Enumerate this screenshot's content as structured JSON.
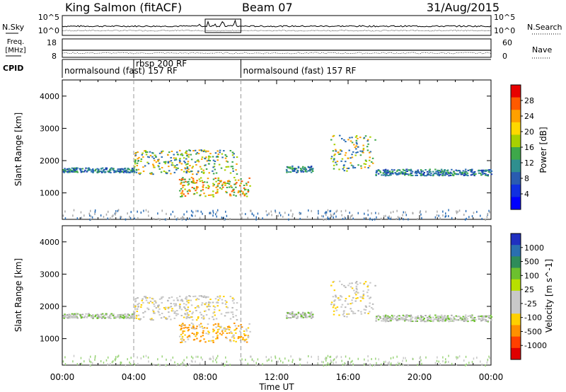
{
  "header": {
    "title": "King Salmon (fitACF)",
    "beam": "Beam 07",
    "date": "31/Aug/2015"
  },
  "chart_data": [
    {
      "type": "line",
      "panel": "noise",
      "left_label": "N.Sky",
      "left_ticks": [
        "10^5",
        "10^0"
      ],
      "right_label": "N.Search",
      "right_ticks": [
        "10^5",
        "10^0"
      ],
      "box_annotation_x": [
        8.0,
        10.0
      ]
    },
    {
      "type": "line",
      "panel": "frequency-nave",
      "left_label_lines": [
        "Freq.",
        "[MHz]"
      ],
      "left_ticks": [
        18,
        8
      ],
      "right_label": "Nave",
      "right_ticks": [
        60,
        0
      ]
    },
    {
      "type": "table",
      "panel": "cpid",
      "label": "CPID",
      "segments": [
        {
          "label": "normalsound (fast) 157 RF",
          "start": 0.0,
          "end": 10.0
        },
        {
          "label": "rbsp 200 RF",
          "start": 4.0,
          "end": 10.0
        },
        {
          "label": "normalsound (fast) 157 RF",
          "start": 10.0,
          "end": 24.0
        }
      ]
    },
    {
      "type": "heatmap",
      "panel": "power",
      "ylabel": "Slant Range [km]",
      "yticks": [
        1000,
        2000,
        3000,
        4000
      ],
      "ylim": [
        180,
        4500
      ],
      "xlim": [
        0,
        24
      ],
      "colorbar": {
        "label": "Power [dB]",
        "ticks": [
          "28",
          "24",
          "20",
          "16",
          "12",
          "8",
          "4"
        ],
        "colors": [
          "#e80000",
          "#ff5a00",
          "#ffa000",
          "#ffd800",
          "#a8d000",
          "#3ea84a",
          "#2f8f8f",
          "#2a5cb0",
          "#1030e0",
          "#0000ff"
        ]
      },
      "regions": [
        {
          "x": [
            0.0,
            4.0
          ],
          "y": [
            1650,
            1800
          ],
          "level": "low"
        },
        {
          "x": [
            4.0,
            9.8
          ],
          "y": [
            1600,
            2350
          ],
          "level": "mid"
        },
        {
          "x": [
            6.5,
            10.5
          ],
          "y": [
            900,
            1500
          ],
          "level": "high"
        },
        {
          "x": [
            12.5,
            14.0
          ],
          "y": [
            1650,
            1850
          ],
          "level": "low"
        },
        {
          "x": [
            15.0,
            17.5
          ],
          "y": [
            1700,
            2800
          ],
          "level": "mid"
        },
        {
          "x": [
            17.5,
            24.0
          ],
          "y": [
            1550,
            1750
          ],
          "level": "low"
        }
      ]
    },
    {
      "type": "heatmap",
      "panel": "velocity",
      "ylabel": "Slant Range [km]",
      "yticks": [
        1000,
        2000,
        3000,
        4000
      ],
      "ylim": [
        180,
        4500
      ],
      "xlim": [
        0,
        24
      ],
      "colorbar": {
        "label": "Velocity [m s^-1]",
        "ticks": [
          "1000",
          "500",
          "100",
          "25",
          "-25",
          "-100",
          "-500",
          "-1000"
        ],
        "colors": [
          "#2030c0",
          "#2a6fb0",
          "#2e8c5a",
          "#6cc02e",
          "#b8e000",
          "#c8c8c8",
          "#c8c8c8",
          "#ffd000",
          "#ff9000",
          "#ff4000",
          "#e00000"
        ]
      },
      "xlabel": "Time UT",
      "xticks": [
        "00:00",
        "04:00",
        "08:00",
        "12:00",
        "16:00",
        "20:00",
        "00:00"
      ],
      "dashed_lines": [
        4.0,
        10.0
      ]
    }
  ]
}
